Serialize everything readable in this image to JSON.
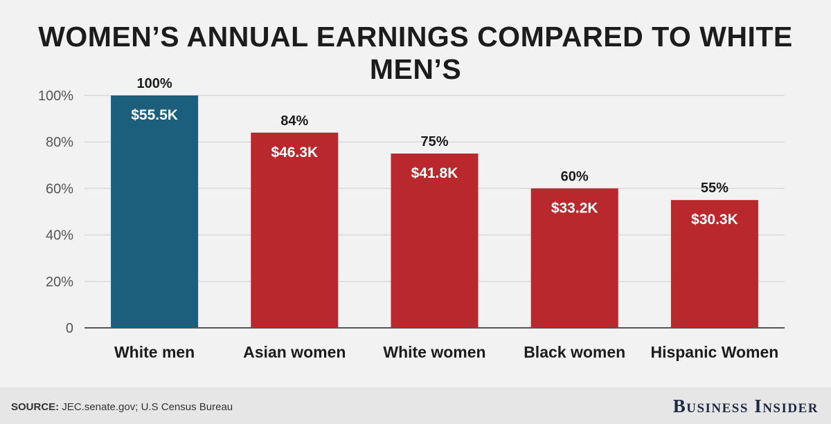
{
  "chart_data": {
    "type": "bar",
    "title": "WOMEN’S ANNUAL EARNINGS COMPARED TO WHITE MEN’S",
    "categories": [
      "White men",
      "Asian women",
      "White women",
      "Black women",
      "Hispanic Women"
    ],
    "values": [
      100,
      84,
      75,
      60,
      55
    ],
    "value_labels": [
      "100%",
      "84%",
      "75%",
      "60%",
      "55%"
    ],
    "earnings_labels": [
      "$55.5K",
      "$46.3K",
      "$41.8K",
      "$33.2K",
      "$30.3K"
    ],
    "bar_colors": [
      "#1b5f7c",
      "#b9282c",
      "#b9282c",
      "#b9282c",
      "#b9282c"
    ],
    "ylim": [
      0,
      100
    ],
    "y_ticks": [
      0,
      20,
      40,
      60,
      80,
      100
    ],
    "y_tick_labels": [
      "0",
      "20%",
      "40%",
      "60%",
      "80%",
      "100%"
    ],
    "grid": true,
    "xlabel": "",
    "ylabel": ""
  },
  "footer": {
    "source_label": "SOURCE:",
    "source_text": " JEC.senate.gov; U.S Census Bureau",
    "brand": "Business Insider"
  }
}
